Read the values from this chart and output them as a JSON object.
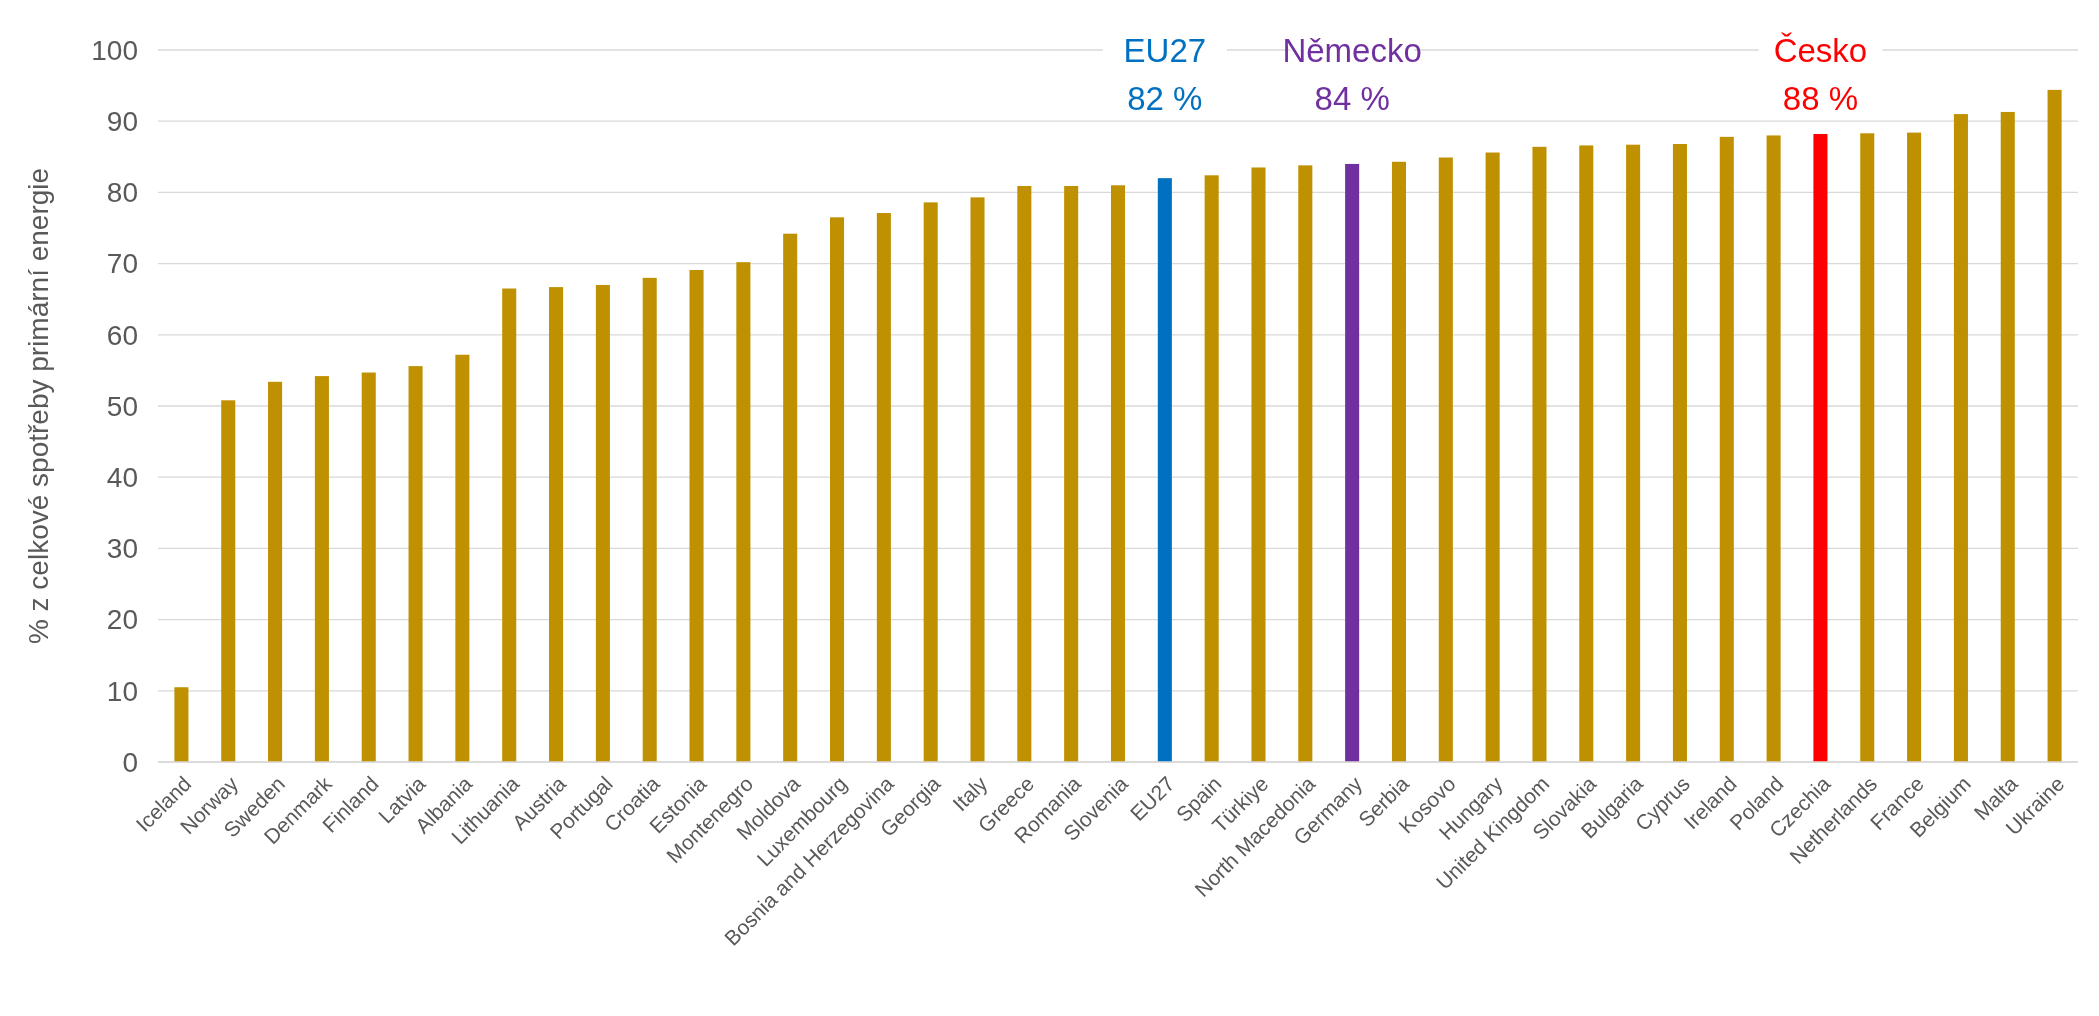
{
  "chart_data": {
    "type": "bar",
    "ylabel": "% z celkové spotřeby primární energie",
    "categories": [
      "Iceland",
      "Norway",
      "Sweden",
      "Denmark",
      "Finland",
      "Latvia",
      "Albania",
      "Lithuania",
      "Austria",
      "Portugal",
      "Croatia",
      "Estonia",
      "Montenegro",
      "Moldova",
      "Luxembourg",
      "Bosnia and Herzegovina",
      "Georgia",
      "Italy",
      "Greece",
      "Romania",
      "Slovenia",
      "EU27",
      "Spain",
      "Türkiye",
      "North Macedonia",
      "Germany",
      "Serbia",
      "Kosovo",
      "Hungary",
      "United Kingdom",
      "Slovakia",
      "Bulgaria",
      "Cyprus",
      "Ireland",
      "Poland",
      "Czechia",
      "Netherlands",
      "France",
      "Belgium",
      "Malta",
      "Ukraine"
    ],
    "values": [
      10.5,
      50.8,
      53.4,
      54.2,
      54.7,
      55.6,
      57.2,
      66.5,
      66.7,
      67.0,
      68.0,
      69.1,
      70.2,
      74.2,
      76.5,
      77.1,
      78.6,
      79.3,
      80.9,
      80.9,
      81.0,
      82.0,
      82.4,
      83.5,
      83.8,
      84.0,
      84.3,
      84.9,
      85.6,
      86.4,
      86.6,
      86.7,
      86.8,
      87.8,
      88.0,
      88.2,
      88.3,
      88.4,
      91.0,
      91.3,
      94.4
    ],
    "colors": [
      "#bf9000",
      "#bf9000",
      "#bf9000",
      "#bf9000",
      "#bf9000",
      "#bf9000",
      "#bf9000",
      "#bf9000",
      "#bf9000",
      "#bf9000",
      "#bf9000",
      "#bf9000",
      "#bf9000",
      "#bf9000",
      "#bf9000",
      "#bf9000",
      "#bf9000",
      "#bf9000",
      "#bf9000",
      "#bf9000",
      "#bf9000",
      "#0070c0",
      "#bf9000",
      "#bf9000",
      "#bf9000",
      "#7030a0",
      "#bf9000",
      "#bf9000",
      "#bf9000",
      "#bf9000",
      "#bf9000",
      "#bf9000",
      "#bf9000",
      "#bf9000",
      "#bf9000",
      "#ff0000",
      "#bf9000",
      "#bf9000",
      "#bf9000",
      "#bf9000",
      "#bf9000"
    ],
    "ylim": [
      0,
      100
    ],
    "yticks": [
      0,
      10,
      20,
      30,
      40,
      50,
      60,
      70,
      80,
      90,
      100
    ],
    "grid": "y",
    "annotations": [
      "EU27\n82 %",
      "Německo\n84 %",
      "Česko\n88 %"
    ]
  }
}
